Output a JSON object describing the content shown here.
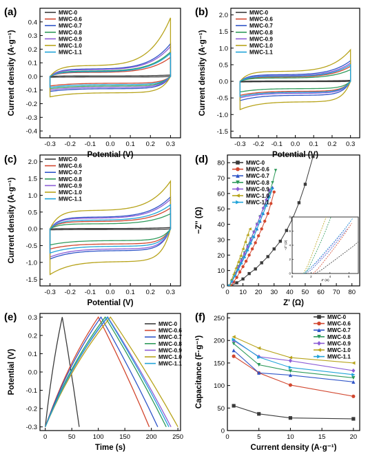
{
  "colors": {
    "MWC-0": "#3a3a3a",
    "MWC-0.6": "#d2472f",
    "MWC-0.7": "#2f55c8",
    "MWC-0.8": "#2e9a5a",
    "MWC-0.9": "#8b5cd6",
    "MWC-1.0": "#b7a31a",
    "MWC-1.1": "#1fa3d8"
  },
  "chart_data": [
    {
      "id": "a",
      "panel_label": "(a)",
      "type": "line",
      "xlabel": "Potential (V)",
      "ylabel": "Current density (A·g⁻¹)",
      "xlim": [
        -0.35,
        0.35
      ],
      "ylim": [
        -0.45,
        0.5
      ],
      "xticks": [
        -0.3,
        -0.2,
        -0.1,
        0.0,
        0.1,
        0.2,
        0.3
      ],
      "yticks": [
        -0.4,
        -0.3,
        -0.2,
        -0.1,
        0.0,
        0.1,
        0.2,
        0.3,
        0.4
      ],
      "series": [
        {
          "name": "MWC-0",
          "values": {
            "peak": 0.01,
            "upper": 0.004,
            "lower": -0.004,
            "vmin": -0.006
          }
        },
        {
          "name": "MWC-0.6",
          "values": {
            "peak": 0.14,
            "upper": 0.03,
            "lower": -0.05,
            "vmin": -0.07
          }
        },
        {
          "name": "MWC-0.7",
          "values": {
            "peak": 0.24,
            "upper": 0.055,
            "lower": -0.09,
            "vmin": -0.11
          }
        },
        {
          "name": "MWC-0.8",
          "values": {
            "peak": 0.18,
            "upper": 0.04,
            "lower": -0.07,
            "vmin": -0.09
          }
        },
        {
          "name": "MWC-0.9",
          "values": {
            "peak": 0.22,
            "upper": 0.05,
            "lower": -0.08,
            "vmin": -0.1
          }
        },
        {
          "name": "MWC-1.0",
          "values": {
            "peak": 0.43,
            "upper": 0.08,
            "lower": -0.12,
            "vmin": -0.15
          }
        },
        {
          "name": "MWC-1.1",
          "values": {
            "peak": 0.17,
            "upper": 0.035,
            "lower": -0.06,
            "vmin": -0.08
          }
        }
      ]
    },
    {
      "id": "b",
      "panel_label": "(b)",
      "type": "line",
      "xlabel": "Potential (V)",
      "ylabel": "Current density (A·g⁻¹)",
      "xlim": [
        -0.35,
        0.35
      ],
      "ylim": [
        -1.7,
        2.2
      ],
      "xticks": [
        -0.3,
        -0.2,
        -0.1,
        0.0,
        0.1,
        0.2,
        0.3
      ],
      "yticks": [
        -1.5,
        -1.0,
        -0.5,
        0.0,
        0.5,
        1.0,
        1.5,
        2.0
      ],
      "series": [
        {
          "name": "MWC-0",
          "values": {
            "peak": 0.03,
            "upper": 0.01,
            "lower": -0.01,
            "vmin": -0.02
          }
        },
        {
          "name": "MWC-0.6",
          "values": {
            "peak": 0.45,
            "upper": 0.13,
            "lower": -0.3,
            "vmin": -0.42
          }
        },
        {
          "name": "MWC-0.7",
          "values": {
            "peak": 0.62,
            "upper": 0.2,
            "lower": -0.42,
            "vmin": -0.58
          }
        },
        {
          "name": "MWC-0.8",
          "values": {
            "peak": 0.35,
            "upper": 0.1,
            "lower": -0.22,
            "vmin": -0.32
          }
        },
        {
          "name": "MWC-0.9",
          "values": {
            "peak": 0.55,
            "upper": 0.17,
            "lower": -0.36,
            "vmin": -0.5
          }
        },
        {
          "name": "MWC-1.0",
          "values": {
            "peak": 0.95,
            "upper": 0.3,
            "lower": -0.62,
            "vmin": -0.85
          }
        },
        {
          "name": "MWC-1.1",
          "values": {
            "peak": 0.5,
            "upper": 0.15,
            "lower": -0.33,
            "vmin": -0.46
          }
        }
      ]
    },
    {
      "id": "c",
      "panel_label": "(c)",
      "type": "line",
      "xlabel": "Potential (V)",
      "ylabel": "Current density (A·g⁻¹)",
      "xlim": [
        -0.35,
        0.35
      ],
      "ylim": [
        -1.7,
        2.2
      ],
      "xticks": [
        -0.3,
        -0.2,
        -0.1,
        0.0,
        0.1,
        0.2,
        0.3
      ],
      "yticks": [
        -1.5,
        -1.0,
        -0.5,
        0.0,
        0.5,
        1.0,
        1.5,
        2.0
      ],
      "series": [
        {
          "name": "MWC-0",
          "values": {
            "peak": 0.04,
            "upper": 0.01,
            "lower": -0.02,
            "vmin": -0.03
          }
        },
        {
          "name": "MWC-0.6",
          "values": {
            "peak": 0.62,
            "upper": 0.22,
            "lower": -0.45,
            "vmin": -0.6
          }
        },
        {
          "name": "MWC-0.7",
          "values": {
            "peak": 0.95,
            "upper": 0.35,
            "lower": -0.65,
            "vmin": -0.9
          }
        },
        {
          "name": "MWC-0.8",
          "values": {
            "peak": 0.45,
            "upper": 0.15,
            "lower": -0.35,
            "vmin": -0.48
          }
        },
        {
          "name": "MWC-0.9",
          "values": {
            "peak": 0.88,
            "upper": 0.32,
            "lower": -0.6,
            "vmin": -0.84
          }
        },
        {
          "name": "MWC-1.0",
          "values": {
            "peak": 1.42,
            "upper": 0.55,
            "lower": -0.98,
            "vmin": -1.36
          }
        },
        {
          "name": "MWC-1.1",
          "values": {
            "peak": 0.72,
            "upper": 0.26,
            "lower": -0.52,
            "vmin": -0.72
          }
        }
      ]
    },
    {
      "id": "d",
      "panel_label": "(d)",
      "type": "scatter",
      "xlabel": "Z' (Ω)",
      "ylabel": "−Z'' (Ω)",
      "xlim": [
        0,
        85
      ],
      "ylim": [
        0,
        85
      ],
      "xticks": [
        0,
        10,
        20,
        30,
        40,
        50,
        60,
        70,
        80
      ],
      "yticks": [
        0,
        10,
        20,
        30,
        40,
        50,
        60,
        70,
        80
      ],
      "markers": {
        "MWC-0": "square",
        "MWC-0.6": "circle",
        "MWC-0.7": "triangle",
        "MWC-0.8": "triangle-down",
        "MWC-0.9": "diamond",
        "MWC-1.0": "triangle-left",
        "MWC-1.1": "triangle-right"
      },
      "series": [
        {
          "name": "MWC-0",
          "x": [
            2.4,
            6,
            10,
            14,
            18,
            22,
            26,
            30,
            34,
            38,
            42,
            46,
            50,
            55
          ],
          "y": [
            0,
            2,
            4.5,
            8,
            11,
            15,
            19,
            24,
            29,
            36,
            44,
            54,
            66,
            84
          ]
        },
        {
          "name": "MWC-0.6",
          "x": [
            2.2,
            4,
            6,
            8,
            10,
            12,
            14,
            16,
            18,
            20,
            22,
            24,
            26,
            28,
            30
          ],
          "y": [
            0,
            2.5,
            5.5,
            9,
            12.5,
            16,
            20,
            24,
            28,
            32.5,
            37,
            42,
            47,
            53.5,
            61
          ]
        },
        {
          "name": "MWC-0.7",
          "x": [
            1.4,
            3,
            5,
            7,
            9,
            11,
            13,
            15,
            17,
            19,
            21,
            23,
            25,
            27,
            29
          ],
          "y": [
            0,
            3,
            7,
            11,
            15,
            19,
            23.5,
            28,
            32,
            37,
            42,
            47,
            52.5,
            58,
            64
          ]
        },
        {
          "name": "MWC-0.8",
          "x": [
            1.4,
            3,
            5,
            7,
            9,
            11,
            13,
            15,
            17,
            19,
            21,
            23,
            25,
            27,
            29,
            31
          ],
          "y": [
            0,
            3.5,
            8,
            12.5,
            17,
            21.5,
            26,
            30.5,
            35,
            40,
            45,
            50,
            55,
            60.5,
            67,
            75
          ]
        },
        {
          "name": "MWC-0.9",
          "x": [
            1.2,
            3,
            5,
            7,
            9,
            11,
            13,
            15,
            17,
            19,
            21,
            23,
            25,
            27
          ],
          "y": [
            0,
            3,
            7.5,
            12,
            16.5,
            21,
            25.5,
            30,
            35,
            40,
            45,
            50.5,
            56,
            62
          ]
        },
        {
          "name": "MWC-1.0",
          "x": [
            1.2,
            2.5,
            4,
            5.5,
            7,
            8.5,
            10,
            11.5,
            13,
            14.5
          ],
          "y": [
            0,
            3.5,
            7.5,
            11.5,
            15.5,
            19.5,
            24,
            28.5,
            33,
            37
          ]
        },
        {
          "name": "MWC-1.1",
          "x": [
            1.2,
            3,
            5,
            7,
            9,
            11,
            13,
            15,
            17,
            19,
            21,
            23,
            25,
            27,
            29
          ],
          "y": [
            0,
            3,
            6.5,
            10.5,
            14.5,
            18.5,
            23,
            27.5,
            32,
            37,
            42,
            47,
            52,
            57.5,
            63
          ]
        }
      ],
      "inset": {
        "xlabel": "Z' (Ω)",
        "ylabel": "−Z'' (Ω)",
        "xlim": [
          0,
          7
        ],
        "ylim": [
          0,
          8
        ],
        "xticks": [
          0,
          2,
          4,
          6
        ],
        "yticks": [
          0,
          2,
          4,
          6,
          8
        ],
        "series": [
          {
            "name": "MWC-0",
            "x": [
              2.4,
              3,
              3.8,
              4.6,
              5.5,
              6.5,
              7
            ],
            "y": [
              0,
              0.4,
              1.2,
              2.0,
              2.9,
              3.9,
              4.5
            ]
          },
          {
            "name": "MWC-0.6",
            "x": [
              2.2,
              2.7,
              3.3,
              4,
              4.8,
              5.6,
              6.3
            ],
            "y": [
              0,
              0.6,
              1.6,
              2.8,
              4.2,
              5.7,
              7.1
            ]
          },
          {
            "name": "MWC-0.7",
            "x": [
              1.4,
              2,
              2.8,
              3.8,
              4.8,
              5.8
            ],
            "y": [
              0,
              0.5,
              1.6,
              3.0,
              4.6,
              6.3
            ]
          },
          {
            "name": "MWC-0.8",
            "x": [
              1.4,
              1.9,
              2.6,
              3.4,
              4.1
            ],
            "y": [
              0,
              1.2,
              3.2,
              5.6,
              8
            ]
          },
          {
            "name": "MWC-0.9",
            "x": [
              1.2,
              1.8,
              2.6,
              3.5,
              4.4,
              5.3,
              6.2
            ],
            "y": [
              0,
              0.6,
              1.6,
              2.9,
              4.3,
              5.8,
              7.4
            ]
          },
          {
            "name": "MWC-1.0",
            "x": [
              1.2,
              1.7,
              2.3,
              3,
              3.6
            ],
            "y": [
              0,
              1.3,
              3.4,
              5.9,
              8
            ]
          },
          {
            "name": "MWC-1.1",
            "x": [
              1.2,
              1.8,
              2.6,
              3.5,
              4.5,
              5.5,
              6.4
            ],
            "y": [
              0,
              0.6,
              1.7,
              3.1,
              4.6,
              6.2,
              7.8
            ]
          }
        ]
      }
    },
    {
      "id": "e",
      "panel_label": "(e)",
      "type": "line",
      "xlabel": "Time (s)",
      "ylabel": "Potential (V)",
      "xlim": [
        -10,
        255
      ],
      "ylim": [
        -0.32,
        0.32
      ],
      "xticks": [
        0,
        50,
        100,
        150,
        200,
        250
      ],
      "yticks": [
        -0.3,
        -0.2,
        -0.1,
        0.0,
        0.1,
        0.2,
        0.3
      ],
      "series": [
        {
          "name": "MWC-0",
          "values": {
            "t_peak": 32,
            "t_end": 64
          }
        },
        {
          "name": "MWC-0.6",
          "values": {
            "t_peak": 100,
            "t_end": 196
          }
        },
        {
          "name": "MWC-0.7",
          "values": {
            "t_peak": 105,
            "t_end": 212
          }
        },
        {
          "name": "MWC-0.8",
          "values": {
            "t_peak": 113,
            "t_end": 228
          }
        },
        {
          "name": "MWC-0.9",
          "values": {
            "t_peak": 118,
            "t_end": 237
          }
        },
        {
          "name": "MWC-1.0",
          "values": {
            "t_peak": 123,
            "t_end": 250
          }
        },
        {
          "name": "MWC-1.1",
          "values": {
            "t_peak": 117,
            "t_end": 233
          }
        }
      ]
    },
    {
      "id": "f",
      "panel_label": "(f)",
      "type": "line",
      "xlabel": "Current density (A·g⁻¹)",
      "ylabel": "Capacitance (F·g⁻¹)",
      "xlim": [
        0,
        21
      ],
      "ylim": [
        0,
        260
      ],
      "xticks": [
        0,
        5,
        10,
        15,
        20
      ],
      "yticks": [
        0,
        50,
        100,
        150,
        200,
        250
      ],
      "x": [
        1,
        5,
        10,
        20
      ],
      "markers": {
        "MWC-0": "square",
        "MWC-0.6": "circle",
        "MWC-0.7": "triangle",
        "MWC-0.8": "triangle-down",
        "MWC-0.9": "diamond",
        "MWC-1.0": "triangle-left",
        "MWC-1.1": "triangle-right"
      },
      "series": [
        {
          "name": "MWC-0",
          "values": [
            55,
            37,
            28,
            26
          ]
        },
        {
          "name": "MWC-0.6",
          "values": [
            165,
            128,
            101,
            76
          ]
        },
        {
          "name": "MWC-0.7",
          "values": [
            178,
            128,
            123,
            108
          ]
        },
        {
          "name": "MWC-0.8",
          "values": [
            193,
            146,
            132,
            117
          ]
        },
        {
          "name": "MWC-0.9",
          "values": [
            200,
            164,
            155,
            133
          ]
        },
        {
          "name": "MWC-1.0",
          "values": [
            208,
            183,
            162,
            150
          ]
        },
        {
          "name": "MWC-1.1",
          "values": [
            202,
            163,
            140,
            124
          ]
        }
      ]
    }
  ]
}
